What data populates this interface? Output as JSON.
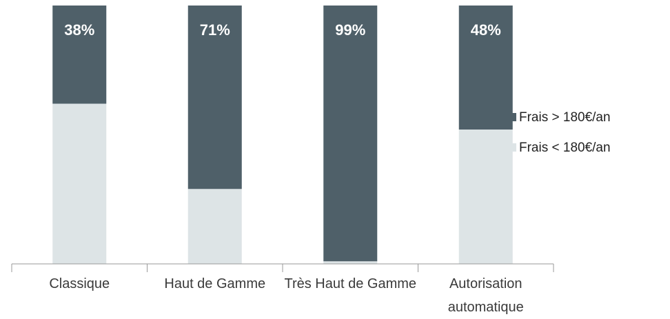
{
  "chart_data": {
    "type": "stacked_bar",
    "categories": [
      "Classique",
      "Haut de Gamme",
      "Très Haut de Gamme",
      "Autorisation automatique"
    ],
    "series": [
      {
        "name": "Frais > 180€/an",
        "color": "#4f6069",
        "values": [
          38,
          71,
          99,
          48
        ],
        "value_labels": [
          "38%",
          "71%",
          "99%",
          "48%"
        ]
      },
      {
        "name": "Frais < 180€/an",
        "color": "#dde4e6",
        "values": [
          62,
          29,
          1,
          52
        ]
      }
    ],
    "ylim": [
      0,
      100
    ],
    "legend": "right"
  }
}
